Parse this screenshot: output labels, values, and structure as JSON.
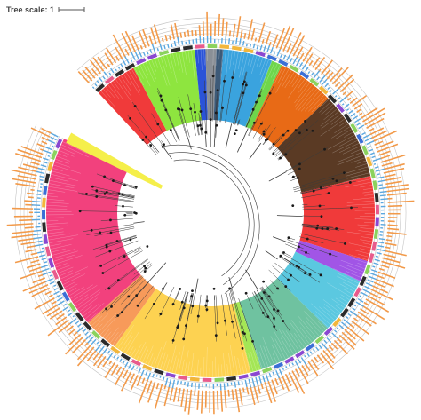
{
  "figure": {
    "type": "circular phylogenetic tree",
    "background": "#ffffff",
    "tree_scale": {
      "label": "Tree scale: 1"
    },
    "clades": [
      {
        "name": "clade-red-left",
        "color": "#f03a3a"
      },
      {
        "name": "clade-lime-left",
        "color": "#8ee53f"
      },
      {
        "name": "clade-blue",
        "color": "#2a53d8"
      },
      {
        "name": "clade-gray",
        "color": "#8a8f96"
      },
      {
        "name": "clade-navy",
        "color": "#3d5a78"
      },
      {
        "name": "clade-sky-top",
        "color": "#3aa3de"
      },
      {
        "name": "clade-green-small",
        "color": "#6fd64b"
      },
      {
        "name": "clade-orange",
        "color": "#e86a16"
      },
      {
        "name": "clade-brown",
        "color": "#5a3a24"
      },
      {
        "name": "clade-red-right",
        "color": "#f03a3a"
      },
      {
        "name": "clade-purple",
        "color": "#a155e6"
      },
      {
        "name": "clade-cyan",
        "color": "#5bc8e0"
      },
      {
        "name": "clade-teal",
        "color": "#6fc2a0"
      },
      {
        "name": "clade-lime-bottom",
        "color": "#a4e655"
      },
      {
        "name": "clade-yellow",
        "color": "#fdd251"
      },
      {
        "name": "clade-salmon",
        "color": "#f79a5a"
      },
      {
        "name": "clade-pink",
        "color": "#f2417d"
      }
    ],
    "ring_colors": {
      "outer_bars": "#f29a4a",
      "inner_bars": "#5ba8e0",
      "mark_ring": [
        "#8bd25d",
        "#e85b8c",
        "#3b6fd6",
        "#f2b63b",
        "#2b2b2b",
        "#8a48d1"
      ],
      "grid": "#c4c4c4",
      "branch": "#3a3a3a",
      "node": "#1a1a1a",
      "highlight": "#f5ef4a"
    }
  }
}
